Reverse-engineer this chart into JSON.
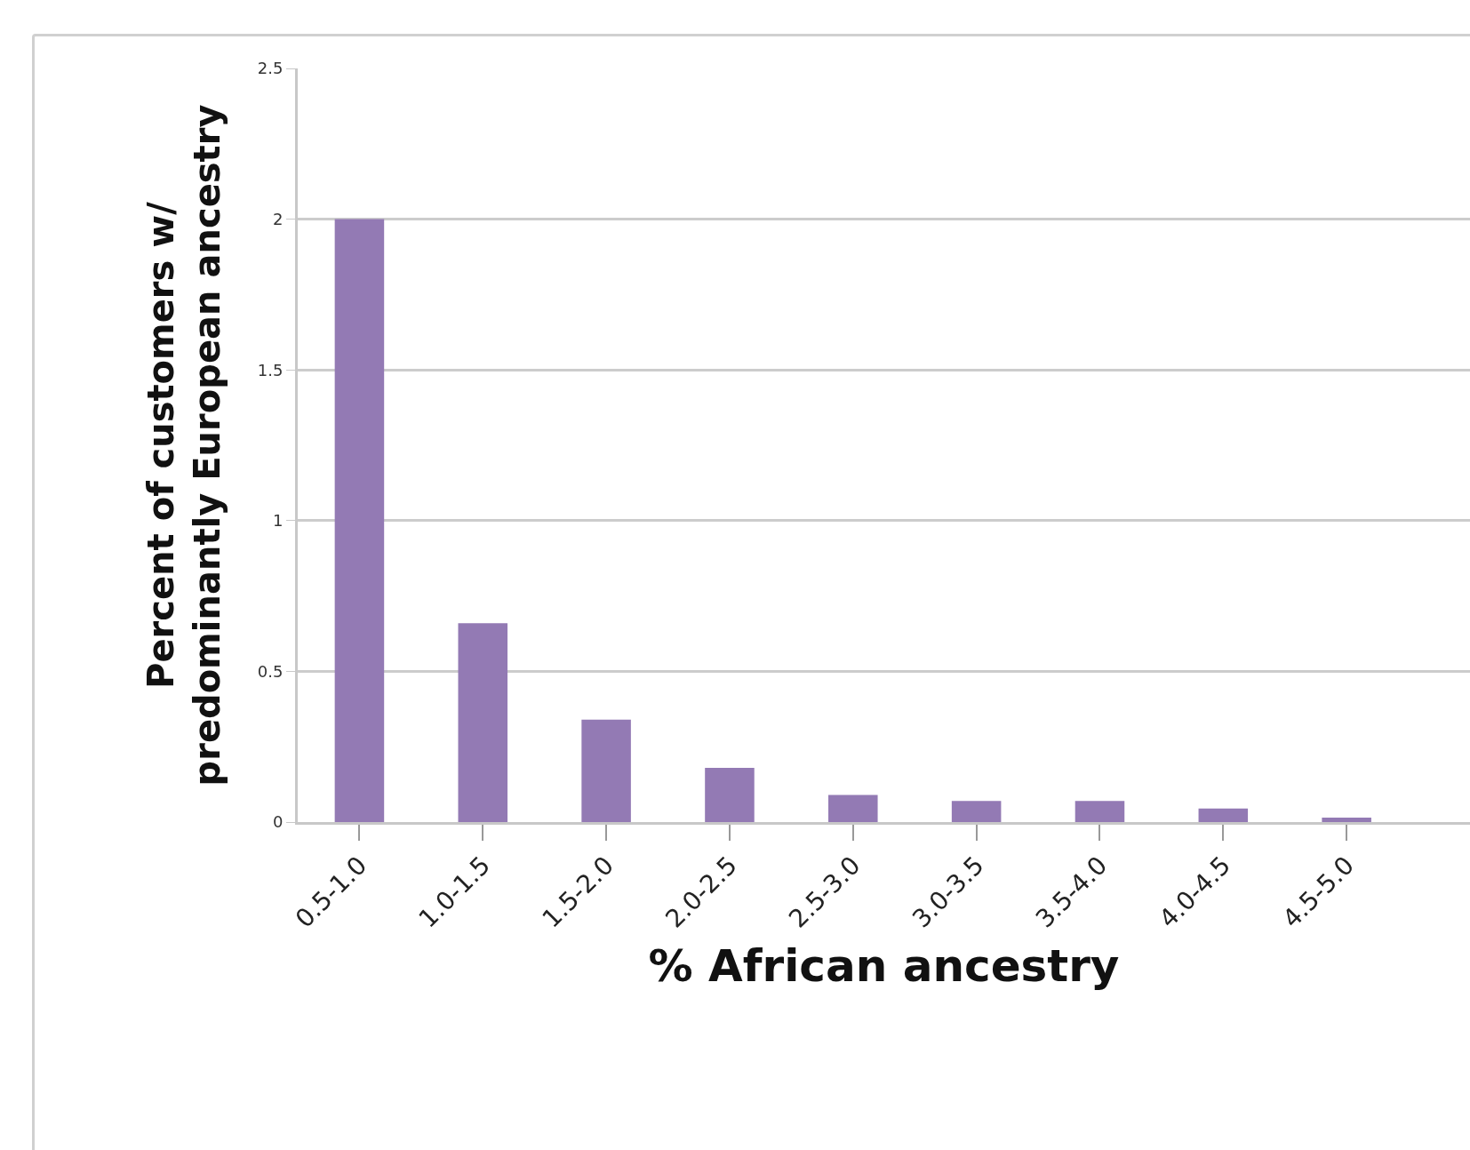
{
  "chart_data": {
    "type": "bar",
    "xlabel": "% African ancestry",
    "ylabel": "Percent of customers w/\npredominantly European ancestry",
    "categories": [
      "0.5-1.0",
      "1.0-1.5",
      "1.5-2.0",
      "2.0-2.5",
      "2.5-3.0",
      "3.0-3.5",
      "3.5-4.0",
      "4.0-4.5",
      "4.5-5.0"
    ],
    "values": [
      2,
      0.66,
      0.34,
      0.18,
      0.09,
      0.07,
      0.07,
      0.045,
      0.015
    ],
    "color": "#937ab4",
    "ylim": [
      0,
      2.5
    ],
    "yticks": [
      0,
      0.5,
      1,
      1.5,
      2,
      2.5
    ],
    "grid": "y",
    "legend": false
  }
}
